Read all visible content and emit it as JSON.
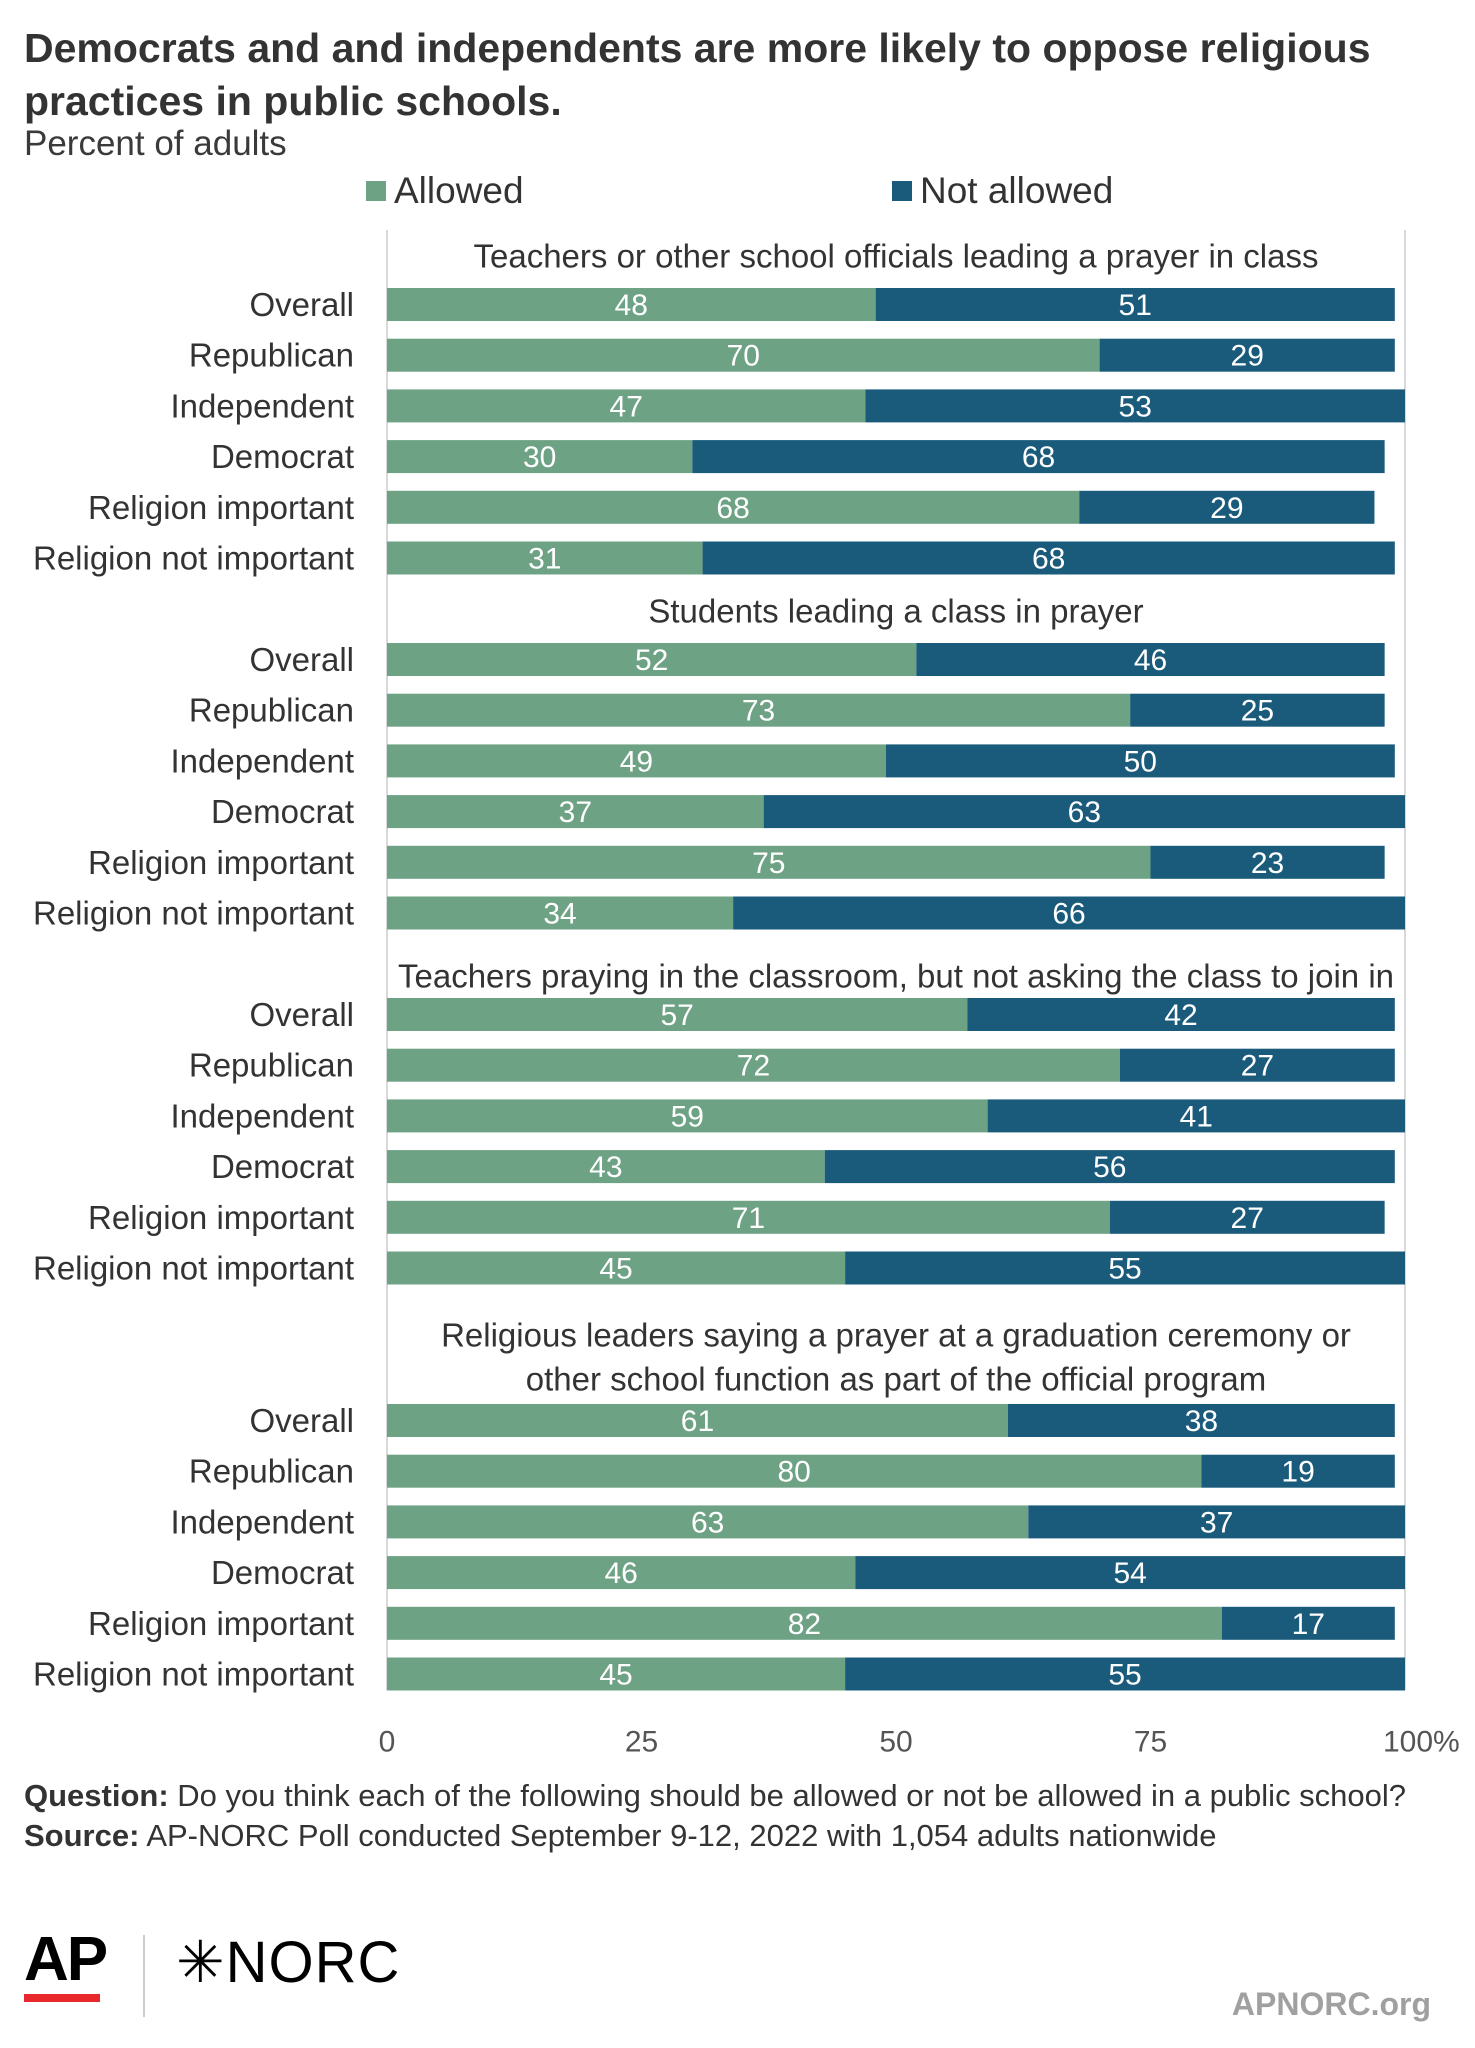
{
  "title": "Democrats and and independents are more likely to oppose religious practices in public schools.",
  "subtitle": "Percent of adults",
  "legend": [
    {
      "label": "Allowed",
      "color": "#6ea285"
    },
    {
      "label": "Not allowed",
      "color": "#1a5b7c"
    }
  ],
  "chart_data": {
    "type": "bar",
    "orientation": "horizontal",
    "stacked": true,
    "unit": "%",
    "xlim": [
      0,
      100
    ],
    "ticks": [
      "0",
      "25",
      "50",
      "75",
      "100%"
    ],
    "tick_values": [
      0,
      25,
      50,
      75,
      100
    ],
    "grid": false,
    "legend_position": "top",
    "colors": {
      "Allowed": "#6ea285",
      "Not allowed": "#1a5b7c"
    },
    "panels": [
      {
        "title": [
          "Teachers or other school officials leading a prayer in class"
        ],
        "categories": [
          "Overall",
          "Republican",
          "Independent",
          "Democrat",
          "Religion important",
          "Religion not important"
        ],
        "series": [
          {
            "name": "Allowed",
            "values": [
              48,
              70,
              47,
              30,
              68,
              31
            ]
          },
          {
            "name": "Not allowed",
            "values": [
              51,
              29,
              53,
              68,
              29,
              68
            ]
          }
        ]
      },
      {
        "title": [
          "Students leading a class in prayer"
        ],
        "categories": [
          "Overall",
          "Republican",
          "Independent",
          "Democrat",
          "Religion important",
          "Religion not important"
        ],
        "series": [
          {
            "name": "Allowed",
            "values": [
              52,
              73,
              49,
              37,
              75,
              34
            ]
          },
          {
            "name": "Not allowed",
            "values": [
              46,
              25,
              50,
              63,
              23,
              66
            ]
          }
        ]
      },
      {
        "title": [
          "Teachers praying in the classroom, but not asking the class to join in"
        ],
        "categories": [
          "Overall",
          "Republican",
          "Independent",
          "Democrat",
          "Religion important",
          "Religion not important"
        ],
        "series": [
          {
            "name": "Allowed",
            "values": [
              57,
              72,
              59,
              43,
              71,
              45
            ]
          },
          {
            "name": "Not allowed",
            "values": [
              42,
              27,
              41,
              56,
              27,
              55
            ]
          }
        ]
      },
      {
        "title": [
          "Religious leaders saying a prayer at a graduation ceremony or",
          "other school function as part of the official program"
        ],
        "categories": [
          "Overall",
          "Republican",
          "Independent",
          "Democrat",
          "Religion important",
          "Religion not important"
        ],
        "series": [
          {
            "name": "Allowed",
            "values": [
              61,
              80,
              63,
              46,
              82,
              45
            ]
          },
          {
            "name": "Not allowed",
            "values": [
              38,
              19,
              37,
              54,
              17,
              55
            ]
          }
        ]
      }
    ]
  },
  "footnote": {
    "question_label": "Question:",
    "question_text": "Do you think each of the following should be allowed or not be allowed in a public school?",
    "source_label": "Source:",
    "source_text": "AP-NORC Poll conducted September 9-12, 2022 with 1,054 adults nationwide"
  },
  "logos": {
    "ap": "AP",
    "norc": "NORC",
    "norc_mark": "✳"
  },
  "website": "APNORC.org"
}
